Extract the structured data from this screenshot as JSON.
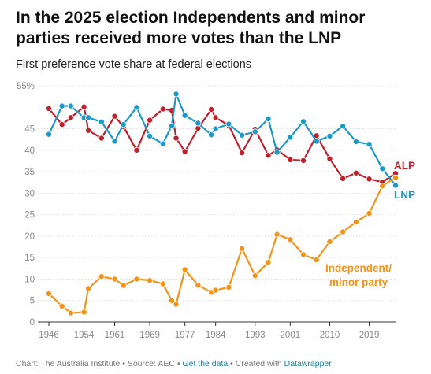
{
  "title": "In the 2025 election Independents and minor parties received more votes than the LNP",
  "subtitle": "First preference vote share at federal elections",
  "footer": {
    "chart_label": "Chart: The Australia Institute",
    "sep1": " • ",
    "source_label": "Source: AEC",
    "sep2": " • ",
    "data_link": "Get the data",
    "sep3": " • ",
    "created_label": "Created with ",
    "tool_link": "Datawrapper"
  },
  "colors": {
    "ALP": "#c0202a",
    "LNP": "#1b9ac9",
    "Independent/minor party": "#f3931a",
    "grid": "#dddddd",
    "axis_text": "#888888"
  },
  "chart_data": {
    "type": "line",
    "title": "In the 2025 election Independents and minor parties received more votes than the LNP",
    "subtitle": "First preference vote share at federal elections",
    "x_ticks": [
      "1946",
      "1954",
      "1961",
      "1969",
      "1977",
      "1984",
      "1993",
      "2001",
      "2010",
      "2019"
    ],
    "y_ticks": [
      "0",
      "5",
      "10",
      "15",
      "20",
      "25",
      "30",
      "35",
      "40",
      "45",
      "55%"
    ],
    "ylim": [
      0,
      55
    ],
    "xlim": [
      1946,
      2025
    ],
    "grid": true,
    "legend": "direct labels at line ends",
    "x": [
      1946,
      1949,
      1951,
      1954,
      1955,
      1958,
      1961,
      1963,
      1966,
      1969,
      1972,
      1974,
      1975,
      1977,
      1980,
      1983,
      1984,
      1987,
      1990,
      1993,
      1996,
      1998,
      2001,
      2004,
      2007,
      2010,
      2013,
      2016,
      2019,
      2022,
      2025
    ],
    "series": [
      {
        "name": "ALP",
        "color": "#c0202a",
        "values": [
          49.7,
          46.0,
          47.6,
          50.1,
          44.6,
          42.8,
          47.9,
          45.5,
          40.0,
          47.0,
          49.6,
          49.3,
          42.8,
          39.7,
          45.1,
          49.5,
          47.6,
          45.8,
          39.4,
          44.9,
          38.8,
          40.1,
          37.8,
          37.6,
          43.4,
          38.0,
          33.4,
          34.7,
          33.3,
          32.6,
          34.6
        ]
      },
      {
        "name": "LNP",
        "color": "#1b9ac9",
        "values": [
          43.7,
          50.3,
          50.3,
          47.6,
          47.6,
          46.6,
          42.1,
          46.0,
          50.0,
          43.3,
          41.5,
          45.7,
          53.1,
          48.1,
          46.3,
          43.6,
          45.0,
          46.1,
          43.5,
          44.3,
          47.3,
          39.5,
          43.0,
          46.7,
          42.1,
          43.3,
          45.6,
          42.0,
          41.4,
          35.7,
          31.8
        ]
      },
      {
        "name": "Independent/minor party",
        "color": "#f3931a",
        "values": [
          6.6,
          3.7,
          2.1,
          2.3,
          7.8,
          10.6,
          10.0,
          8.5,
          10.0,
          9.7,
          8.9,
          5.0,
          4.1,
          12.2,
          8.6,
          6.9,
          7.4,
          8.1,
          17.1,
          10.8,
          13.9,
          20.4,
          19.2,
          15.7,
          14.5,
          18.7,
          21.0,
          23.3,
          25.3,
          31.7,
          33.6
        ]
      }
    ],
    "labels": [
      {
        "series": "ALP",
        "text": "ALP"
      },
      {
        "series": "LNP",
        "text": "LNP"
      },
      {
        "series": "Independent/minor party",
        "text": "Independent/"
      },
      {
        "series": "Independent/minor party",
        "text": "minor party"
      }
    ]
  }
}
